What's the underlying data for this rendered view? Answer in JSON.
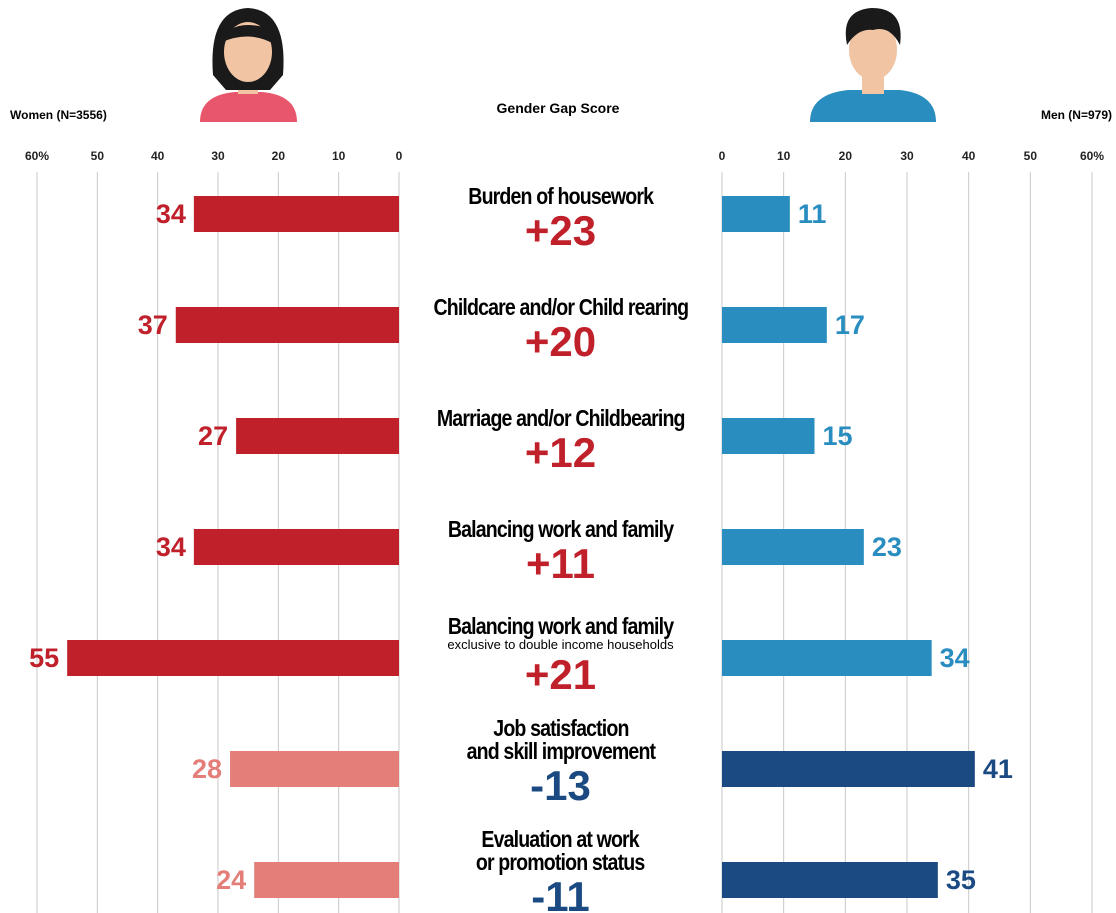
{
  "chart_data": {
    "type": "butterfly",
    "title": "Gender Gap Score",
    "categories": [
      "Burden of housework",
      "Childcare and/or Child rearing",
      "Marriage and/or Childbearing",
      "Balancing work and family",
      "Balancing work and family",
      "Job satisfaction\nand skill improvement",
      "Evaluation at work\nor promotion status"
    ],
    "category_notes": [
      null,
      null,
      null,
      null,
      "exclusive to double income households",
      null,
      null
    ],
    "series": [
      {
        "name": "Women (N=3556)",
        "side": "left",
        "colors": [
          "#c0202a",
          "#c0202a",
          "#c0202a",
          "#c0202a",
          "#c0202a",
          "#e37e78",
          "#e37e78"
        ],
        "values": [
          34,
          37,
          27,
          34,
          55,
          28,
          24
        ]
      },
      {
        "name": "Men (N=979)",
        "side": "right",
        "colors": [
          "#2a8dc0",
          "#2a8dc0",
          "#2a8dc0",
          "#2a8dc0",
          "#2a8dc0",
          "#1b4a82",
          "#1b4a82"
        ],
        "values": [
          11,
          17,
          15,
          23,
          34,
          41,
          35
        ]
      }
    ],
    "gap_scores": {
      "values": [
        23,
        20,
        12,
        11,
        21,
        -13,
        -11
      ],
      "value_labels": [
        "+23",
        "+20",
        "+12",
        "+11",
        "+21",
        "-13",
        "-11"
      ],
      "colors": [
        "#c0202a",
        "#c0202a",
        "#c0202a",
        "#c0202a",
        "#c0202a",
        "#1b4a82",
        "#1b4a82"
      ]
    },
    "xlim": [
      0,
      60
    ],
    "xticks": [
      0,
      10,
      20,
      30,
      40,
      50,
      {
        "value": 60,
        "label": "60%"
      }
    ],
    "grid": true
  }
}
